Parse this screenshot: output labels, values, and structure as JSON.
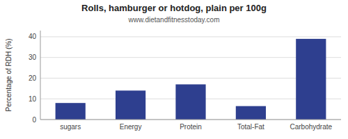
{
  "chart_data": {
    "type": "bar",
    "title": "Rolls, hamburger or hotdog, plain per 100g",
    "subtitle": "www.dietandfitnesstoday.com",
    "categories": [
      "sugars",
      "Energy",
      "Protein",
      "Total-Fat",
      "Carbohydrate"
    ],
    "values": [
      8,
      14,
      17,
      6.5,
      39
    ],
    "color": "#2e3f8f",
    "ylabel": "Percentage of RDH (%)",
    "ylim": [
      0,
      43
    ],
    "yticks": [
      0,
      10,
      20,
      30,
      40
    ],
    "grid": true
  }
}
